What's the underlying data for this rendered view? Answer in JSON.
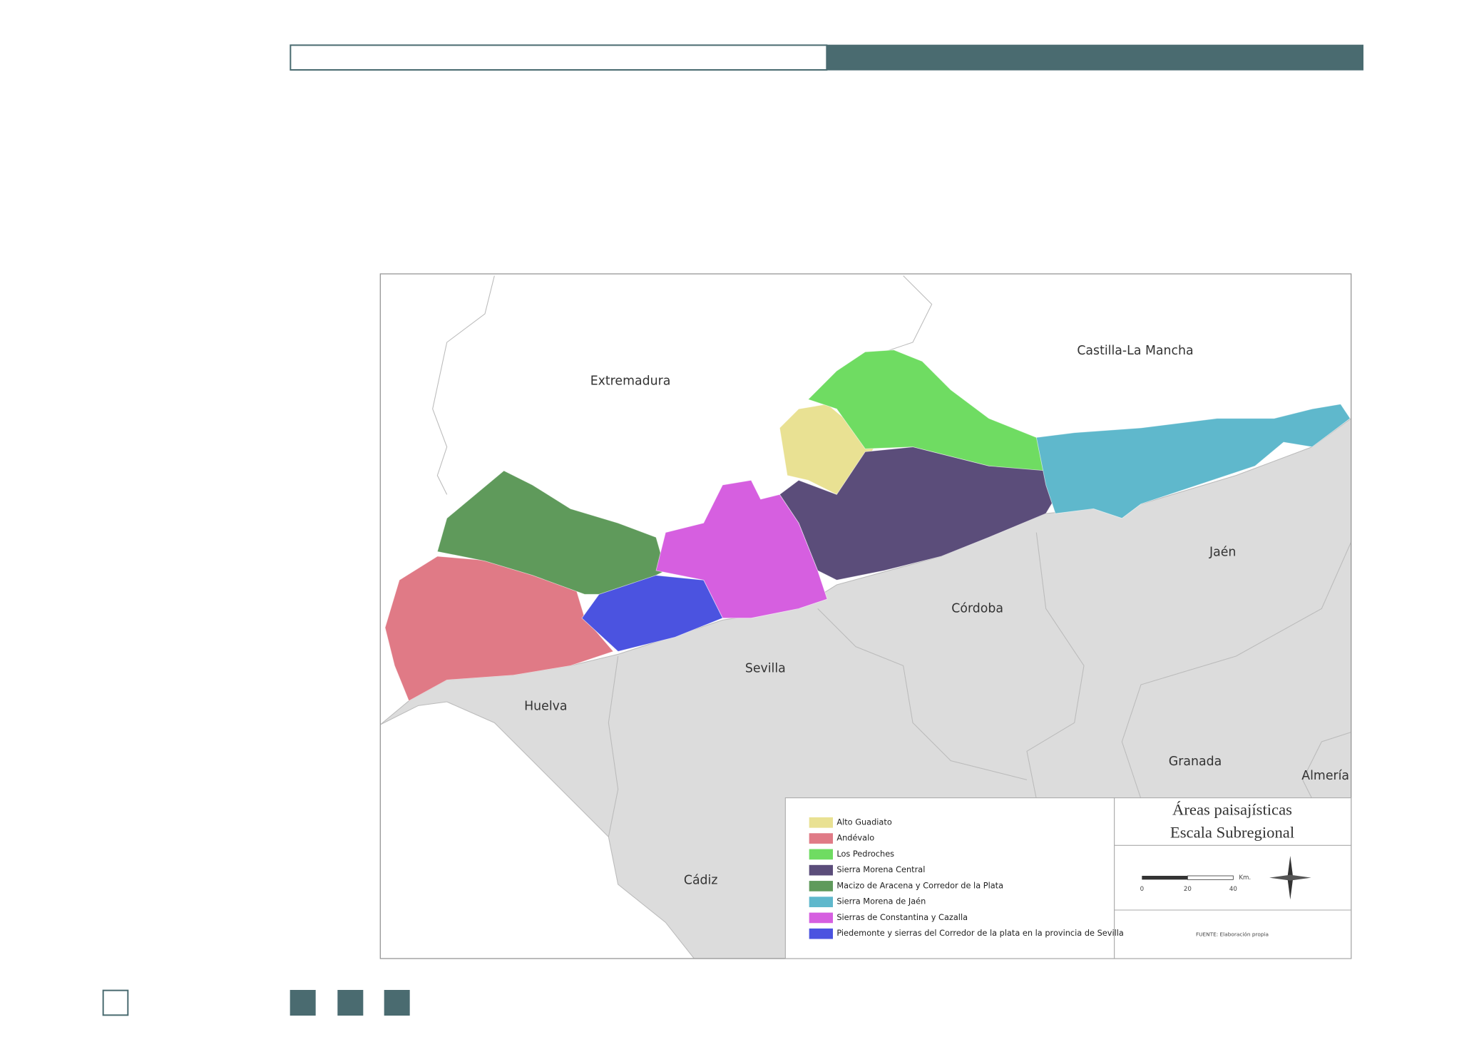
{
  "map": {
    "places": [
      "Extremadura",
      "Castilla-La Mancha",
      "Jaén",
      "Córdoba",
      "Sevilla",
      "Huelva",
      "Granada",
      "Almería",
      "Cádiz"
    ]
  },
  "legend": {
    "items": [
      {
        "name": "Alto Guadiato",
        "color": "#e9e193"
      },
      {
        "name": "Andévalo",
        "color": "#e07a86"
      },
      {
        "name": "Los Pedroches",
        "color": "#6fdc62"
      },
      {
        "name": "Sierra Morena Central",
        "color": "#5b4d7a"
      },
      {
        "name": "Macizo de Aracena y Corredor de la Plata",
        "color": "#5f9a5b"
      },
      {
        "name": "Sierra Morena de Jaén",
        "color": "#5fb8cc"
      },
      {
        "name": "Sierras de Constantina y Cazalla",
        "color": "#d65fe0"
      },
      {
        "name": "Piedemonte y sierras del Corredor de la plata en la provincia de Sevilla",
        "color": "#4b53e0"
      }
    ],
    "title": [
      "Áreas paisajísticas",
      "Escala Subregional"
    ],
    "scale": {
      "ticks": [
        "0",
        "20",
        "40"
      ],
      "unit": "Km."
    },
    "source": "FUENTE: Elaboración propia"
  }
}
